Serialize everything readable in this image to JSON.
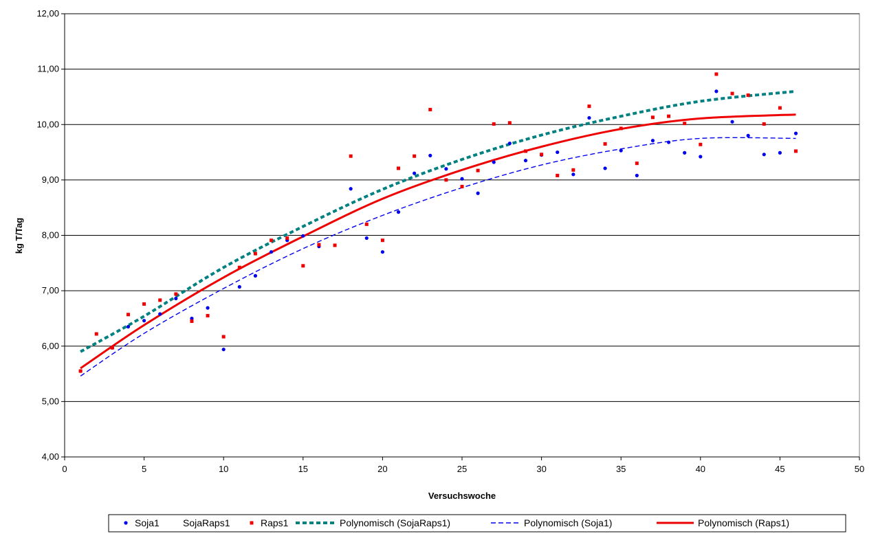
{
  "chart_data": {
    "type": "scatter",
    "xlabel": "Versuchswoche",
    "ylabel": "kg T/Tag",
    "xlim": [
      0,
      50
    ],
    "ylim": [
      4,
      12
    ],
    "x_ticks": [
      "0",
      "5",
      "10",
      "15",
      "20",
      "25",
      "30",
      "35",
      "40",
      "45",
      "50"
    ],
    "y_ticks": [
      "4,00",
      "5,00",
      "6,00",
      "7,00",
      "8,00",
      "9,00",
      "10,00",
      "11,00",
      "12,00"
    ],
    "grid": "horizontal",
    "legend_position": "bottom",
    "series": [
      {
        "name": "Soja1",
        "kind": "points",
        "color": "#0000ee",
        "x": [
          1,
          3,
          4,
          5,
          6,
          7,
          8,
          9,
          10,
          11,
          12,
          13,
          14,
          15,
          16,
          18,
          19,
          20,
          21,
          22,
          23,
          24,
          25,
          26,
          27,
          28,
          29,
          30,
          31,
          32,
          33,
          34,
          35,
          36,
          37,
          38,
          39,
          40,
          41,
          42,
          43,
          44,
          45,
          46
        ],
        "y": [
          5.55,
          5.97,
          6.35,
          6.46,
          6.58,
          6.86,
          6.5,
          6.69,
          5.94,
          7.07,
          7.27,
          7.7,
          7.91,
          7.99,
          7.8,
          8.84,
          7.95,
          7.7,
          8.42,
          9.12,
          9.44,
          9.2,
          9.02,
          8.76,
          9.32,
          9.66,
          9.35,
          9.45,
          9.5,
          9.1,
          10.12,
          9.21,
          9.53,
          9.08,
          9.71,
          9.68,
          9.49,
          9.42,
          10.6,
          10.05,
          9.8,
          9.46,
          9.49,
          9.84
        ]
      },
      {
        "name": "SojaRaps1",
        "kind": "points",
        "color": "#008080",
        "x": [],
        "y": []
      },
      {
        "name": "Raps1",
        "kind": "points",
        "color": "#ee0000",
        "x": [
          1,
          2,
          3,
          4,
          5,
          6,
          7,
          8,
          9,
          10,
          11,
          12,
          13,
          14,
          15,
          16,
          17,
          18,
          19,
          20,
          21,
          22,
          23,
          24,
          25,
          26,
          27,
          28,
          29,
          30,
          31,
          32,
          33,
          34,
          35,
          36,
          37,
          38,
          39,
          40,
          41,
          42,
          43,
          44,
          45,
          46
        ],
        "y": [
          5.55,
          6.22,
          5.97,
          6.57,
          6.76,
          6.83,
          6.94,
          6.45,
          6.55,
          6.17,
          7.42,
          7.67,
          7.91,
          7.95,
          7.45,
          7.83,
          7.82,
          9.43,
          8.2,
          7.91,
          9.21,
          9.43,
          10.27,
          9.0,
          8.88,
          9.17,
          10.01,
          10.03,
          9.52,
          9.46,
          9.08,
          9.18,
          10.33,
          9.65,
          9.93,
          9.3,
          10.13,
          10.15,
          10.02,
          9.64,
          10.91,
          10.56,
          10.53,
          10.01,
          10.3,
          9.52
        ]
      },
      {
        "name": "Polynomisch (SojaRaps1)",
        "kind": "trend",
        "color": "#008080",
        "dash": "6,4",
        "width": 4,
        "x": [
          1,
          5,
          10,
          15,
          20,
          25,
          30,
          35,
          40,
          46
        ],
        "y": [
          5.9,
          6.54,
          7.42,
          8.16,
          8.83,
          9.37,
          9.81,
          10.15,
          10.42,
          10.6
        ]
      },
      {
        "name": "Polynomisch (Soja1)",
        "kind": "trend",
        "color": "#0000ee",
        "dash": "7,4",
        "width": 1.4,
        "x": [
          1,
          5,
          10,
          15,
          20,
          25,
          30,
          35,
          40,
          46
        ],
        "y": [
          5.46,
          6.23,
          7.04,
          7.76,
          8.36,
          8.86,
          9.27,
          9.56,
          9.75,
          9.75
        ]
      },
      {
        "name": "Polynomisch (Raps1)",
        "kind": "trend",
        "color": "#ee0000",
        "dash": "",
        "width": 3,
        "x": [
          1,
          5,
          10,
          15,
          20,
          25,
          30,
          35,
          40,
          46
        ],
        "y": [
          5.6,
          6.38,
          7.24,
          7.98,
          8.66,
          9.18,
          9.6,
          9.92,
          10.11,
          10.18
        ]
      }
    ]
  }
}
